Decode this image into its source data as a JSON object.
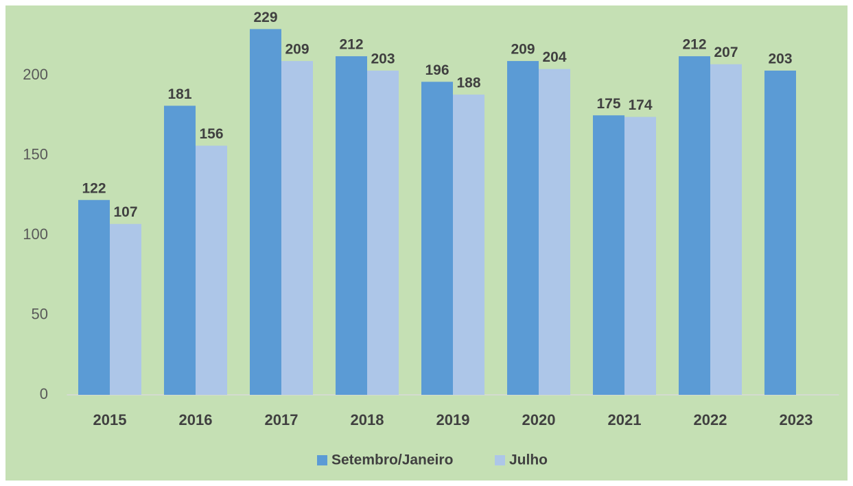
{
  "chart_data": {
    "type": "bar",
    "categories": [
      "2015",
      "2016",
      "2017",
      "2018",
      "2019",
      "2020",
      "2021",
      "2022",
      "2023"
    ],
    "series": [
      {
        "name": "Setembro/Janeiro",
        "color": "#5b9bd5",
        "values": [
          122,
          181,
          229,
          212,
          196,
          209,
          175,
          212,
          203
        ]
      },
      {
        "name": "Julho",
        "color": "#adc6e8",
        "values": [
          107,
          156,
          209,
          203,
          188,
          204,
          174,
          207,
          null
        ]
      }
    ],
    "ylim": [
      0,
      240
    ],
    "yticks": [
      0,
      50,
      100,
      150,
      200
    ],
    "grid": false,
    "legend": "bottom"
  }
}
